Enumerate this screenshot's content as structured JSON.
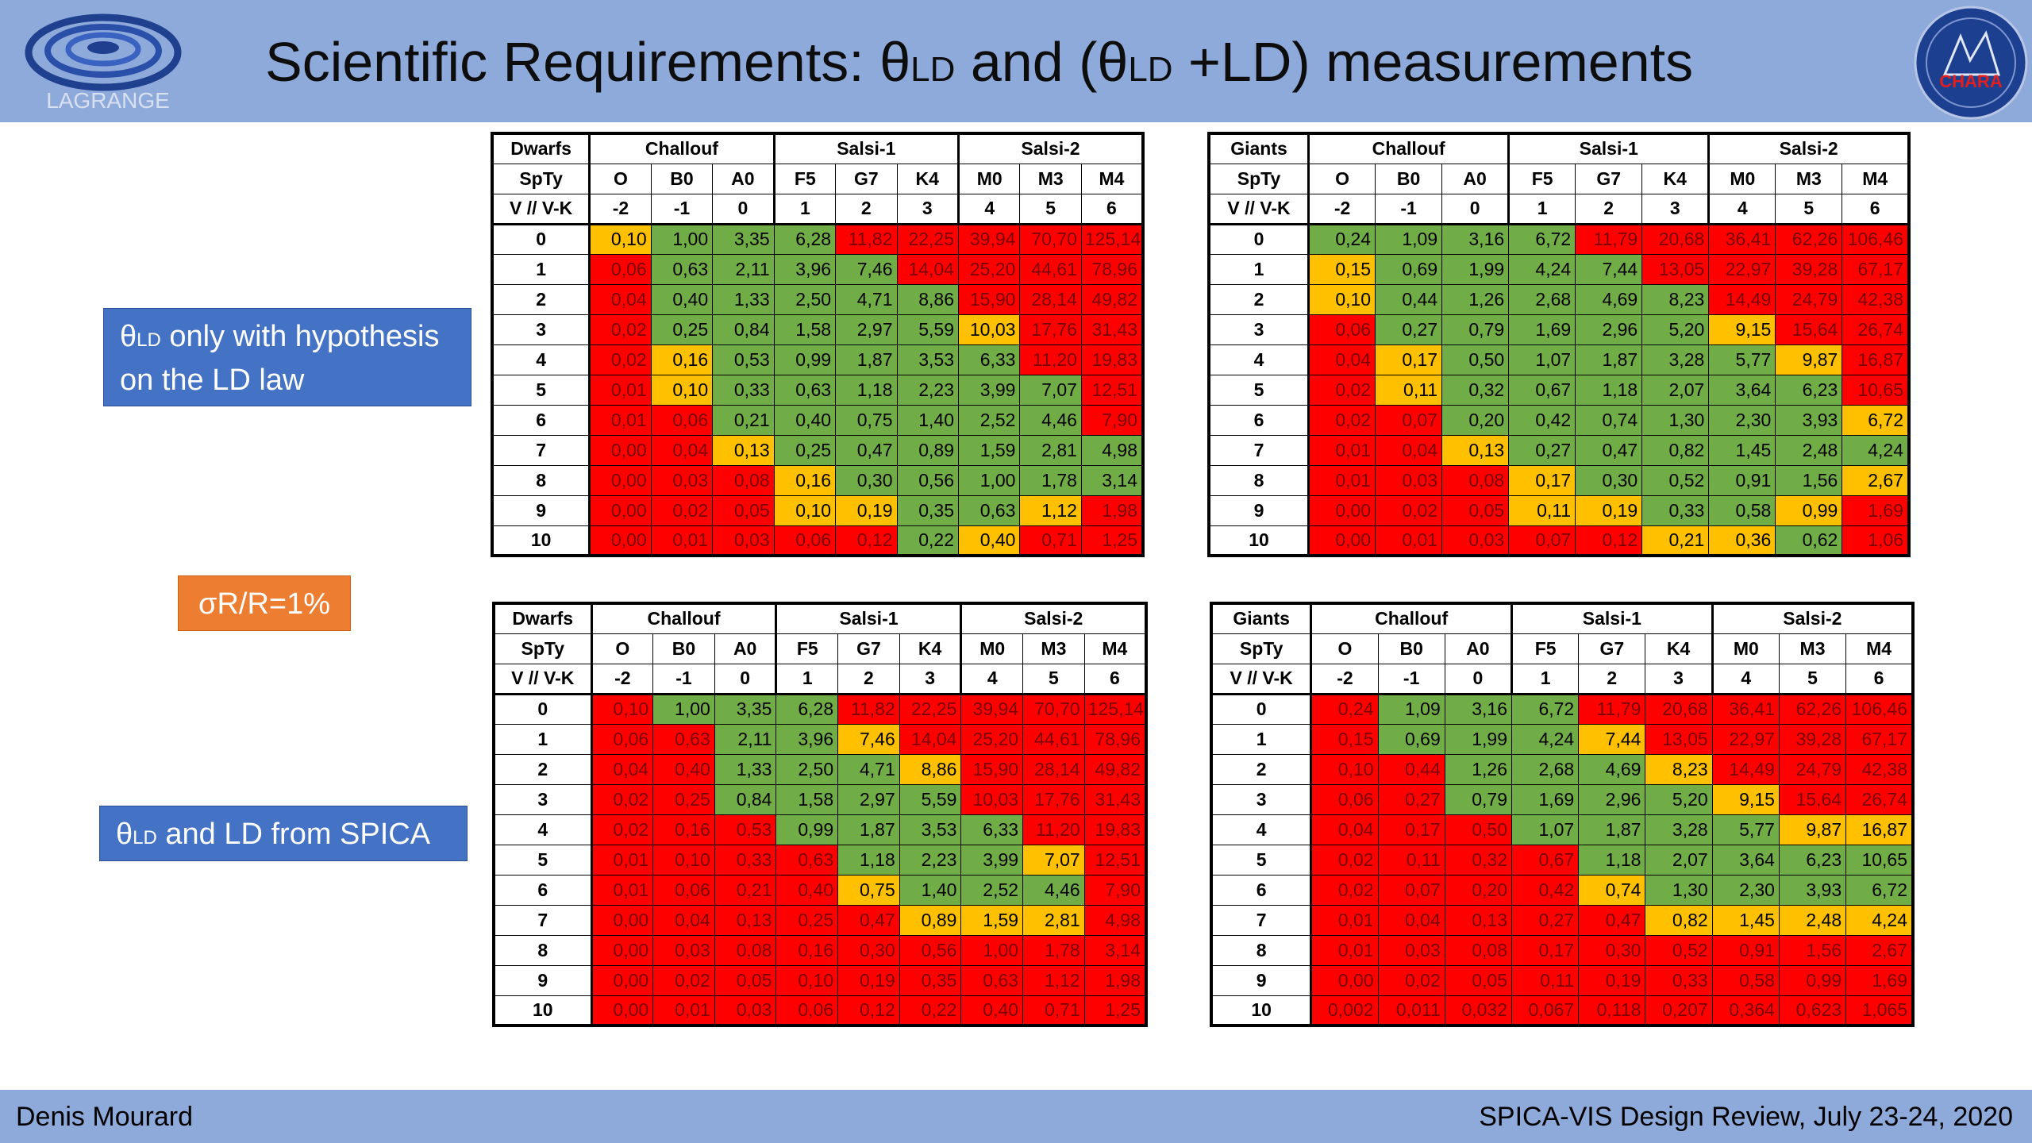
{
  "slide": {
    "title_prefix": "Scientific Requirements: θ",
    "title_sub1": "LD",
    "title_mid": " and (θ",
    "title_sub2": "LD",
    "title_suffix": " +LD) measurements",
    "logo_left_text": "LAGRANGE",
    "logo_right_text": "CHARA"
  },
  "sidebar": {
    "box1": {
      "theta": "θ",
      "sub": "LD",
      "text": " only with hypothesis on the LD law"
    },
    "box2": {
      "text": "σR/R=1%"
    },
    "box3": {
      "theta": "θ",
      "sub": "LD",
      "text": " and LD from SPICA"
    }
  },
  "footer": {
    "author": "Denis Mourard",
    "event": "SPICA-VIS Design Review, July 23-24, 2020"
  },
  "tables": [
    {
      "corner": "Dwarfs",
      "groups": [
        "Challouf",
        "Salsi-1",
        "Salsi-2"
      ],
      "spty_label": "SpTy",
      "spty": [
        "O",
        "B0",
        "A0",
        "F5",
        "G7",
        "K4",
        "M0",
        "M3",
        "M4"
      ],
      "vk_label": "V  // V-K",
      "vk": [
        "-2",
        "-1",
        "0",
        "1",
        "2",
        "3",
        "4",
        "5",
        "6"
      ],
      "rows": [
        "0",
        "1",
        "2",
        "3",
        "4",
        "5",
        "6",
        "7",
        "8",
        "9",
        "10"
      ],
      "values": [
        [
          "0,10",
          "1,00",
          "3,35",
          "6,28",
          "11,82",
          "22,25",
          "39,94",
          "70,70",
          "125,14"
        ],
        [
          "0,06",
          "0,63",
          "2,11",
          "3,96",
          "7,46",
          "14,04",
          "25,20",
          "44,61",
          "78,96"
        ],
        [
          "0,04",
          "0,40",
          "1,33",
          "2,50",
          "4,71",
          "8,86",
          "15,90",
          "28,14",
          "49,82"
        ],
        [
          "0,02",
          "0,25",
          "0,84",
          "1,58",
          "2,97",
          "5,59",
          "10,03",
          "17,76",
          "31,43"
        ],
        [
          "0,02",
          "0,16",
          "0,53",
          "0,99",
          "1,87",
          "3,53",
          "6,33",
          "11,20",
          "19,83"
        ],
        [
          "0,01",
          "0,10",
          "0,33",
          "0,63",
          "1,18",
          "2,23",
          "3,99",
          "7,07",
          "12,51"
        ],
        [
          "0,01",
          "0,06",
          "0,21",
          "0,40",
          "0,75",
          "1,40",
          "2,52",
          "4,46",
          "7,90"
        ],
        [
          "0,00",
          "0,04",
          "0,13",
          "0,25",
          "0,47",
          "0,89",
          "1,59",
          "2,81",
          "4,98"
        ],
        [
          "0,00",
          "0,03",
          "0,08",
          "0,16",
          "0,30",
          "0,56",
          "1,00",
          "1,78",
          "3,14"
        ],
        [
          "0,00",
          "0,02",
          "0,05",
          "0,10",
          "0,19",
          "0,35",
          "0,63",
          "1,12",
          "1,98"
        ],
        [
          "0,00",
          "0,01",
          "0,03",
          "0,06",
          "0,12",
          "0,22",
          "0,40",
          "0,71",
          "1,25"
        ]
      ],
      "colors": [
        "YGGGRRRRR",
        "RGGGGRRRR",
        "RGGGGGRRR",
        "RGGGGGYRR",
        "RYGGGGGRR",
        "RYGGGGGGR",
        "RRGGGGGGR",
        "RRYGGGGGG",
        "RRRYGGGGG",
        "RRRYYGGYR",
        "RRRRRGYRR"
      ]
    },
    {
      "corner": "Giants",
      "groups": [
        "Challouf",
        "Salsi-1",
        "Salsi-2"
      ],
      "spty_label": "SpTy",
      "spty": [
        "O",
        "B0",
        "A0",
        "F5",
        "G7",
        "K4",
        "M0",
        "M3",
        "M4"
      ],
      "vk_label": "V  // V-K",
      "vk": [
        "-2",
        "-1",
        "0",
        "1",
        "2",
        "3",
        "4",
        "5",
        "6"
      ],
      "rows": [
        "0",
        "1",
        "2",
        "3",
        "4",
        "5",
        "6",
        "7",
        "8",
        "9",
        "10"
      ],
      "values": [
        [
          "0,24",
          "1,09",
          "3,16",
          "6,72",
          "11,79",
          "20,68",
          "36,41",
          "62,26",
          "106,46"
        ],
        [
          "0,15",
          "0,69",
          "1,99",
          "4,24",
          "7,44",
          "13,05",
          "22,97",
          "39,28",
          "67,17"
        ],
        [
          "0,10",
          "0,44",
          "1,26",
          "2,68",
          "4,69",
          "8,23",
          "14,49",
          "24,79",
          "42,38"
        ],
        [
          "0,06",
          "0,27",
          "0,79",
          "1,69",
          "2,96",
          "5,20",
          "9,15",
          "15,64",
          "26,74"
        ],
        [
          "0,04",
          "0,17",
          "0,50",
          "1,07",
          "1,87",
          "3,28",
          "5,77",
          "9,87",
          "16,87"
        ],
        [
          "0,02",
          "0,11",
          "0,32",
          "0,67",
          "1,18",
          "2,07",
          "3,64",
          "6,23",
          "10,65"
        ],
        [
          "0,02",
          "0,07",
          "0,20",
          "0,42",
          "0,74",
          "1,30",
          "2,30",
          "3,93",
          "6,72"
        ],
        [
          "0,01",
          "0,04",
          "0,13",
          "0,27",
          "0,47",
          "0,82",
          "1,45",
          "2,48",
          "4,24"
        ],
        [
          "0,01",
          "0,03",
          "0,08",
          "0,17",
          "0,30",
          "0,52",
          "0,91",
          "1,56",
          "2,67"
        ],
        [
          "0,00",
          "0,02",
          "0,05",
          "0,11",
          "0,19",
          "0,33",
          "0,58",
          "0,99",
          "1,69"
        ],
        [
          "0,00",
          "0,01",
          "0,03",
          "0,07",
          "0,12",
          "0,21",
          "0,36",
          "0,62",
          "1,06"
        ]
      ],
      "colors": [
        "GGGGRRRRR",
        "YGGGGRRRR",
        "YGGGGGRRR",
        "RGGGGGYRR",
        "RYGGGGGYR",
        "RYGGGGGGR",
        "RRGGGGGGY",
        "RRYGGGGGG",
        "RRRYGGGGY",
        "RRRYYGGYR",
        "RRRRRYYGR"
      ]
    },
    {
      "corner": "Dwarfs",
      "groups": [
        "Challouf",
        "Salsi-1",
        "Salsi-2"
      ],
      "spty_label": "SpTy",
      "spty": [
        "O",
        "B0",
        "A0",
        "F5",
        "G7",
        "K4",
        "M0",
        "M3",
        "M4"
      ],
      "vk_label": "V  // V-K",
      "vk": [
        "-2",
        "-1",
        "0",
        "1",
        "2",
        "3",
        "4",
        "5",
        "6"
      ],
      "rows": [
        "0",
        "1",
        "2",
        "3",
        "4",
        "5",
        "6",
        "7",
        "8",
        "9",
        "10"
      ],
      "values": [
        [
          "0,10",
          "1,00",
          "3,35",
          "6,28",
          "11,82",
          "22,25",
          "39,94",
          "70,70",
          "125,14"
        ],
        [
          "0,06",
          "0,63",
          "2,11",
          "3,96",
          "7,46",
          "14,04",
          "25,20",
          "44,61",
          "78,96"
        ],
        [
          "0,04",
          "0,40",
          "1,33",
          "2,50",
          "4,71",
          "8,86",
          "15,90",
          "28,14",
          "49,82"
        ],
        [
          "0,02",
          "0,25",
          "0,84",
          "1,58",
          "2,97",
          "5,59",
          "10,03",
          "17,76",
          "31,43"
        ],
        [
          "0,02",
          "0,16",
          "0,53",
          "0,99",
          "1,87",
          "3,53",
          "6,33",
          "11,20",
          "19,83"
        ],
        [
          "0,01",
          "0,10",
          "0,33",
          "0,63",
          "1,18",
          "2,23",
          "3,99",
          "7,07",
          "12,51"
        ],
        [
          "0,01",
          "0,06",
          "0,21",
          "0,40",
          "0,75",
          "1,40",
          "2,52",
          "4,46",
          "7,90"
        ],
        [
          "0,00",
          "0,04",
          "0,13",
          "0,25",
          "0,47",
          "0,89",
          "1,59",
          "2,81",
          "4,98"
        ],
        [
          "0,00",
          "0,03",
          "0,08",
          "0,16",
          "0,30",
          "0,56",
          "1,00",
          "1,78",
          "3,14"
        ],
        [
          "0,00",
          "0,02",
          "0,05",
          "0,10",
          "0,19",
          "0,35",
          "0,63",
          "1,12",
          "1,98"
        ],
        [
          "0,00",
          "0,01",
          "0,03",
          "0,06",
          "0,12",
          "0,22",
          "0,40",
          "0,71",
          "1,25"
        ]
      ],
      "colors": [
        "RGGGRRRRR",
        "RRGGYRRRR",
        "RRGGGYRRR",
        "RRGGGGRRR",
        "RRRGGGGRR",
        "RRRRGGGYR",
        "RRRRYGGGR",
        "RRRRRYYYR",
        "RRRRRRRRR",
        "RRRRRRRRR",
        "RRRRRRRRR"
      ]
    },
    {
      "corner": "Giants",
      "groups": [
        "Challouf",
        "Salsi-1",
        "Salsi-2"
      ],
      "spty_label": "SpTy",
      "spty": [
        "O",
        "B0",
        "A0",
        "F5",
        "G7",
        "K4",
        "M0",
        "M3",
        "M4"
      ],
      "vk_label": "V  // V-K",
      "vk": [
        "-2",
        "-1",
        "0",
        "1",
        "2",
        "3",
        "4",
        "5",
        "6"
      ],
      "rows": [
        "0",
        "1",
        "2",
        "3",
        "4",
        "5",
        "6",
        "7",
        "8",
        "9",
        "10"
      ],
      "values": [
        [
          "0,24",
          "1,09",
          "3,16",
          "6,72",
          "11,79",
          "20,68",
          "36,41",
          "62,26",
          "106,46"
        ],
        [
          "0,15",
          "0,69",
          "1,99",
          "4,24",
          "7,44",
          "13,05",
          "22,97",
          "39,28",
          "67,17"
        ],
        [
          "0,10",
          "0,44",
          "1,26",
          "2,68",
          "4,69",
          "8,23",
          "14,49",
          "24,79",
          "42,38"
        ],
        [
          "0,06",
          "0,27",
          "0,79",
          "1,69",
          "2,96",
          "5,20",
          "9,15",
          "15,64",
          "26,74"
        ],
        [
          "0,04",
          "0,17",
          "0,50",
          "1,07",
          "1,87",
          "3,28",
          "5,77",
          "9,87",
          "16,87"
        ],
        [
          "0,02",
          "0,11",
          "0,32",
          "0,67",
          "1,18",
          "2,07",
          "3,64",
          "6,23",
          "10,65"
        ],
        [
          "0,02",
          "0,07",
          "0,20",
          "0,42",
          "0,74",
          "1,30",
          "2,30",
          "3,93",
          "6,72"
        ],
        [
          "0,01",
          "0,04",
          "0,13",
          "0,27",
          "0,47",
          "0,82",
          "1,45",
          "2,48",
          "4,24"
        ],
        [
          "0,01",
          "0,03",
          "0,08",
          "0,17",
          "0,30",
          "0,52",
          "0,91",
          "1,56",
          "2,67"
        ],
        [
          "0,00",
          "0,02",
          "0,05",
          "0,11",
          "0,19",
          "0,33",
          "0,58",
          "0,99",
          "1,69"
        ],
        [
          "0,002",
          "0,011",
          "0,032",
          "0,067",
          "0,118",
          "0,207",
          "0,364",
          "0,623",
          "1,065"
        ]
      ],
      "colors": [
        "RGGGRRRRR",
        "RGGGYRRRR",
        "RRGGGYRRR",
        "RRGGGGYRR",
        "RRRGGGGYY",
        "RRRRGGGGG",
        "RRRRYGGGG",
        "RRRRRYYYY",
        "RRRRRRRRR",
        "RRRRRRRRR",
        "RRRRRRRRR"
      ]
    }
  ]
}
